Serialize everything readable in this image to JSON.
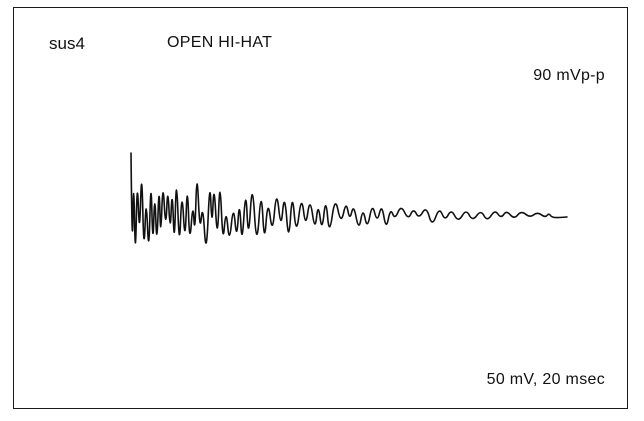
{
  "figure": {
    "tag": "sus4",
    "title": "OPEN HI-HAT",
    "amplitude": "90 mVp-p",
    "scale": "50 mV, 20 msec"
  },
  "waveform": {
    "description_name": "oscilloscope-trace",
    "stroke_color": "#111111",
    "trend": "decaying noise burst"
  }
}
